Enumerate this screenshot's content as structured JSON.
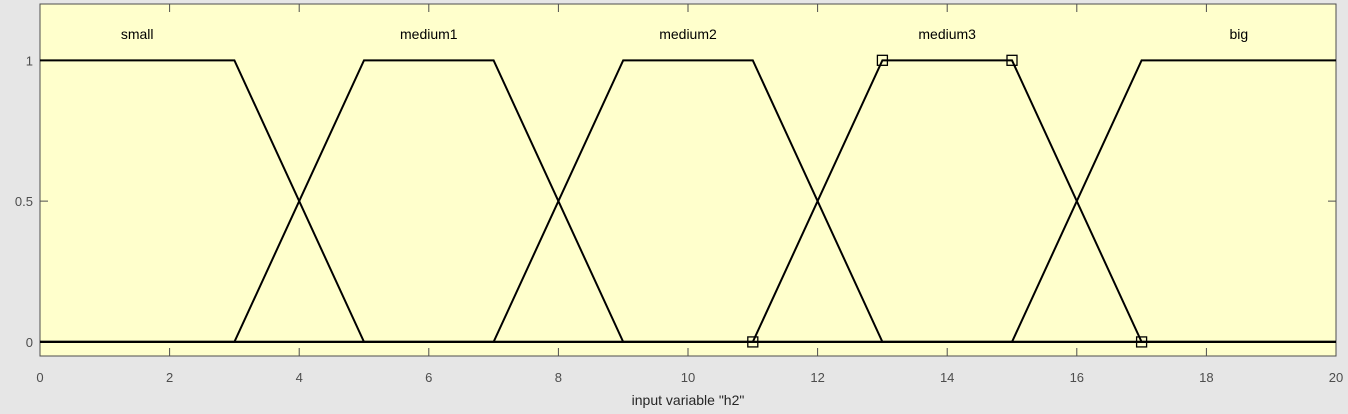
{
  "chart_data": {
    "type": "line",
    "title": "",
    "xlabel": "input variable \"h2\"",
    "ylabel": "",
    "xlim": [
      0,
      20
    ],
    "ylim": [
      -0.05,
      1.2
    ],
    "xticks": [
      0,
      2,
      4,
      6,
      8,
      10,
      12,
      14,
      16,
      18,
      20
    ],
    "yticks": [
      0,
      0.5,
      1
    ],
    "grid": false,
    "colors": {
      "plot_bg": "#ffffcc",
      "figure_bg": "#e6e6e6",
      "line": "#000000",
      "axis": "#4d4d4d"
    },
    "series": [
      {
        "name": "small",
        "label_x": 1.5,
        "x": [
          0,
          3,
          5,
          20
        ],
        "y": [
          1,
          1,
          0,
          0
        ]
      },
      {
        "name": "medium1",
        "label_x": 6,
        "x": [
          0,
          3,
          5,
          7,
          9,
          20
        ],
        "y": [
          0,
          0,
          1,
          1,
          0,
          0
        ]
      },
      {
        "name": "medium2",
        "label_x": 10,
        "x": [
          0,
          7,
          9,
          11,
          13,
          20
        ],
        "y": [
          0,
          0,
          1,
          1,
          0,
          0
        ]
      },
      {
        "name": "medium3",
        "label_x": 14,
        "x": [
          0,
          11,
          13,
          15,
          17,
          20
        ],
        "y": [
          0,
          0,
          1,
          1,
          0,
          0
        ]
      },
      {
        "name": "big",
        "label_x": 18.5,
        "x": [
          0,
          15,
          17,
          20
        ],
        "y": [
          0,
          0,
          1,
          1
        ]
      }
    ],
    "markers": [
      {
        "x": 11,
        "y": 0
      },
      {
        "x": 13,
        "y": 1
      },
      {
        "x": 15,
        "y": 1
      },
      {
        "x": 17,
        "y": 0
      }
    ]
  }
}
